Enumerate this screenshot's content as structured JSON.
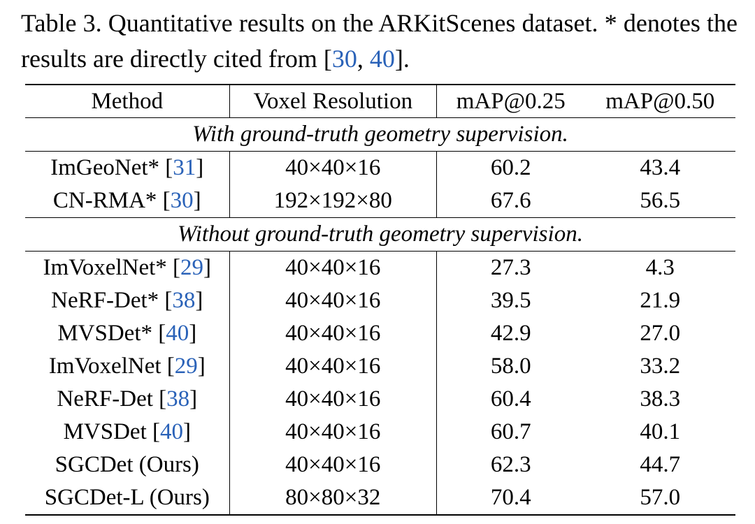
{
  "caption": {
    "prefix": "Table 3. Quantitative results on the ARKitScenes dataset. * denotes the results are directly cited from [",
    "ref1": "30",
    "sep": ", ",
    "ref2": "40",
    "suffix": "]."
  },
  "table": {
    "headers": [
      "Method",
      "Voxel Resolution",
      "mAP@0.25",
      "mAP@0.50"
    ],
    "sections": [
      {
        "title": "With ground-truth geometry supervision.",
        "rows": [
          {
            "method": "ImGeoNet* [",
            "ref": "31",
            "close": "]",
            "voxel": "40×40×16",
            "map25": "60.2",
            "map50": "43.4"
          },
          {
            "method": "CN-RMA* [",
            "ref": "30",
            "close": "]",
            "voxel": "192×192×80",
            "map25": "67.6",
            "map50": "56.5"
          }
        ]
      },
      {
        "title": "Without ground-truth geometry supervision.",
        "rows": [
          {
            "method": "ImVoxelNet* [",
            "ref": "29",
            "close": "]",
            "voxel": "40×40×16",
            "map25": "27.3",
            "map50": "4.3"
          },
          {
            "method": "NeRF-Det* [",
            "ref": "38",
            "close": "]",
            "voxel": "40×40×16",
            "map25": "39.5",
            "map50": "21.9"
          },
          {
            "method": "MVSDet* [",
            "ref": "40",
            "close": "]",
            "voxel": "40×40×16",
            "map25": "42.9",
            "map50": "27.0"
          },
          {
            "method": "ImVoxelNet [",
            "ref": "29",
            "close": "]",
            "voxel": "40×40×16",
            "map25": "58.0",
            "map50": "33.2"
          },
          {
            "method": "NeRF-Det [",
            "ref": "38",
            "close": "]",
            "voxel": "40×40×16",
            "map25": "60.4",
            "map50": "38.3"
          },
          {
            "method": "MVSDet [",
            "ref": "40",
            "close": "]",
            "voxel": "40×40×16",
            "map25": "60.7",
            "map50": "40.1"
          },
          {
            "method": "SGCDet (Ours)",
            "ref": "",
            "close": "",
            "voxel": "40×40×16",
            "map25": "62.3",
            "map50": "44.7"
          },
          {
            "method": "SGCDet-L (Ours)",
            "ref": "",
            "close": "",
            "voxel": "80×80×32",
            "map25": "70.4",
            "map50": "57.0",
            "bold": true
          }
        ]
      }
    ]
  }
}
